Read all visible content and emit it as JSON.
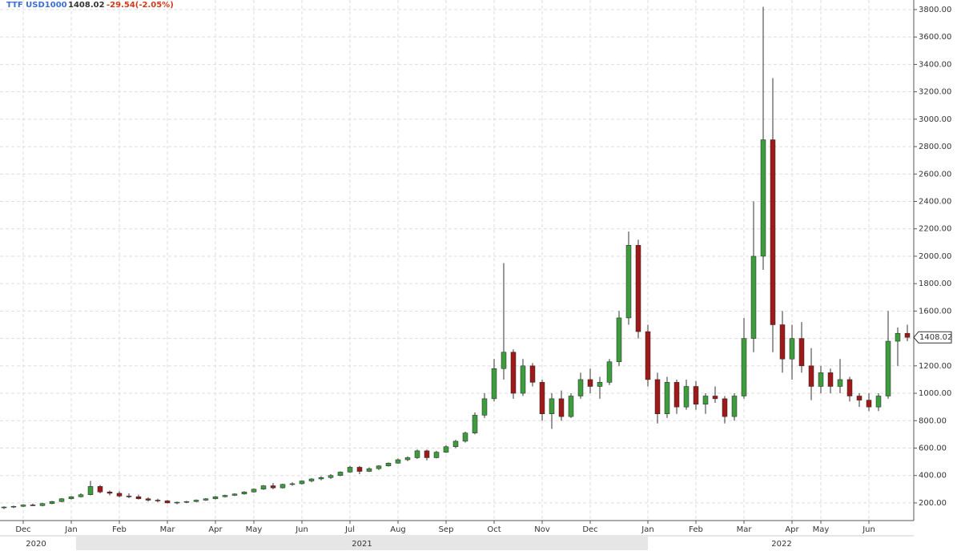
{
  "chart_data": {
    "type": "candlestick",
    "symbol": "TTF USD1000",
    "change_label": "-29.54(-2.05%)",
    "up_color": "#3e9c3e",
    "down_color": "#9e1a1a",
    "grid": true,
    "categories": [
      null,
      null,
      "Dec",
      null,
      null,
      null,
      null,
      "Jan",
      null,
      null,
      null,
      null,
      "Feb",
      null,
      null,
      null,
      null,
      "Mar",
      null,
      null,
      null,
      null,
      "Apr",
      null,
      null,
      null,
      "May",
      null,
      null,
      null,
      null,
      "Jun",
      null,
      null,
      null,
      null,
      "Jul",
      null,
      null,
      null,
      null,
      "Aug",
      null,
      null,
      null,
      null,
      "Sep",
      null,
      null,
      null,
      null,
      "Oct",
      null,
      null,
      null,
      null,
      "Nov",
      null,
      null,
      null,
      null,
      "Dec",
      null,
      null,
      null,
      null,
      null,
      "Jan",
      null,
      null,
      null,
      null,
      "Feb",
      null,
      null,
      null,
      null,
      "Mar",
      null,
      null,
      null,
      null,
      "Apr",
      null,
      null,
      "May",
      null,
      null,
      null,
      null,
      "Jun",
      null,
      null,
      null,
      null
    ],
    "year_labels": [
      "2020",
      "2021",
      "2022"
    ],
    "open": [
      165,
      170,
      175,
      185,
      180,
      195,
      210,
      230,
      245,
      260,
      320,
      280,
      270,
      250,
      245,
      230,
      220,
      215,
      200,
      205,
      210,
      220,
      230,
      245,
      255,
      265,
      280,
      300,
      325,
      310,
      335,
      340,
      360,
      375,
      385,
      400,
      425,
      460,
      430,
      450,
      470,
      490,
      515,
      530,
      580,
      530,
      570,
      610,
      650,
      710,
      840,
      960,
      1180,
      1300,
      1000,
      1200,
      1080,
      850,
      960,
      830,
      980,
      1100,
      1050,
      1080,
      1230,
      1550,
      2080,
      1450,
      1100,
      850,
      1080,
      900,
      1050,
      920,
      980,
      960,
      830,
      980,
      1400,
      2000,
      2850,
      1500,
      1250,
      1400,
      1200,
      1050,
      1150,
      1050,
      1100,
      980,
      950,
      900,
      980,
      1380,
      1437.56
    ],
    "high": [
      175,
      180,
      190,
      195,
      200,
      215,
      235,
      250,
      270,
      360,
      330,
      290,
      285,
      270,
      260,
      240,
      230,
      220,
      210,
      215,
      225,
      235,
      250,
      260,
      270,
      285,
      305,
      330,
      345,
      340,
      350,
      365,
      380,
      395,
      410,
      430,
      470,
      470,
      460,
      475,
      495,
      525,
      540,
      590,
      590,
      580,
      620,
      660,
      720,
      860,
      1000,
      1250,
      1950,
      1320,
      1250,
      1220,
      1100,
      1000,
      1020,
      1000,
      1150,
      1180,
      1120,
      1250,
      1600,
      2180,
      2120,
      1500,
      1150,
      1120,
      1100,
      1100,
      1090,
      1000,
      1050,
      980,
      1000,
      1550,
      2400,
      3820,
      3300,
      1600,
      1500,
      1520,
      1330,
      1200,
      1180,
      1250,
      1120,
      1000,
      1000,
      1000,
      1600,
      1480,
      1500
    ],
    "low": [
      155,
      162,
      170,
      178,
      175,
      190,
      205,
      225,
      240,
      255,
      270,
      255,
      240,
      235,
      225,
      210,
      205,
      195,
      190,
      198,
      205,
      215,
      225,
      240,
      250,
      260,
      275,
      295,
      300,
      305,
      325,
      335,
      350,
      365,
      375,
      395,
      420,
      410,
      425,
      440,
      465,
      485,
      505,
      520,
      510,
      525,
      565,
      600,
      640,
      700,
      820,
      940,
      1100,
      960,
      980,
      1050,
      800,
      740,
      800,
      820,
      960,
      1000,
      960,
      1060,
      1200,
      1500,
      1400,
      1050,
      780,
      820,
      850,
      880,
      880,
      850,
      930,
      780,
      800,
      960,
      1300,
      1900,
      1300,
      1150,
      1100,
      1150,
      950,
      1000,
      1000,
      1000,
      940,
      900,
      870,
      870,
      960,
      1200,
      1380
    ],
    "close": [
      170,
      175,
      185,
      180,
      195,
      210,
      230,
      245,
      260,
      320,
      280,
      270,
      250,
      245,
      230,
      220,
      215,
      200,
      205,
      210,
      220,
      230,
      245,
      255,
      265,
      280,
      300,
      325,
      310,
      335,
      340,
      360,
      375,
      385,
      400,
      425,
      460,
      430,
      450,
      470,
      490,
      515,
      530,
      580,
      530,
      570,
      610,
      650,
      710,
      840,
      960,
      1180,
      1300,
      1000,
      1200,
      1080,
      850,
      960,
      830,
      980,
      1100,
      1050,
      1080,
      1230,
      1550,
      2080,
      1450,
      1100,
      850,
      1080,
      900,
      1050,
      920,
      980,
      960,
      830,
      980,
      1400,
      2000,
      2850,
      1500,
      1250,
      1400,
      1200,
      1050,
      1150,
      1050,
      1100,
      980,
      950,
      900,
      980,
      1380,
      1437.56,
      1408.02
    ],
    "ylim": [
      71,
      3870
    ],
    "yticks": [
      {
        "value": 200,
        "label": "200.00"
      },
      {
        "value": 400,
        "label": "400.00"
      },
      {
        "value": 600,
        "label": "600.00"
      },
      {
        "value": 800,
        "label": "800.00"
      },
      {
        "value": 1000,
        "label": "1000.00"
      },
      {
        "value": 1200,
        "label": "1200.00"
      },
      {
        "value": 1400,
        "label": "1400.00"
      },
      {
        "value": 1600,
        "label": "1600.00"
      },
      {
        "value": 1800,
        "label": "1800.00"
      },
      {
        "value": 2000,
        "label": "2000.00"
      },
      {
        "value": 2200,
        "label": "2200.00"
      },
      {
        "value": 2400,
        "label": "2400.00"
      },
      {
        "value": 2600,
        "label": "2600.00"
      },
      {
        "value": 2800,
        "label": "2800.00"
      },
      {
        "value": 3000,
        "label": "3000.00"
      },
      {
        "value": 3200,
        "label": "3200.00"
      },
      {
        "value": 3400,
        "label": "3400.00"
      },
      {
        "value": 3600,
        "label": "3600.00"
      },
      {
        "value": 3800,
        "label": "3800.00"
      }
    ]
  }
}
